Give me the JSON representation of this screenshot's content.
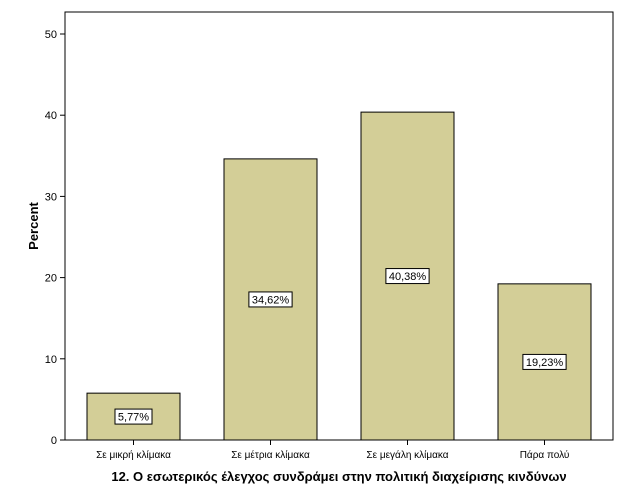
{
  "chart_data": {
    "type": "bar",
    "categories": [
      "Σε μικρή κλίμακα",
      "Σε μέτρια κλίμακα",
      "Σε μεγάλη κλίμακα",
      "Πάρα πολύ"
    ],
    "values": [
      5.77,
      34.62,
      40.38,
      19.23
    ],
    "data_labels": [
      "5,77%",
      "34,62%",
      "40,38%",
      "19,23%"
    ],
    "title": "",
    "xlabel": "12. Ο εσωτερικός έλεγχος συνδράμει στην πολιτική διαχείρισης κινδύνων",
    "ylabel": "Percent",
    "ylim": [
      0,
      50
    ],
    "yticks": [
      0,
      10,
      20,
      30,
      40,
      50
    ],
    "grid": false,
    "bar_color": "#d3ce97",
    "bar_stroke": "#000000",
    "background": "#ffffff"
  }
}
